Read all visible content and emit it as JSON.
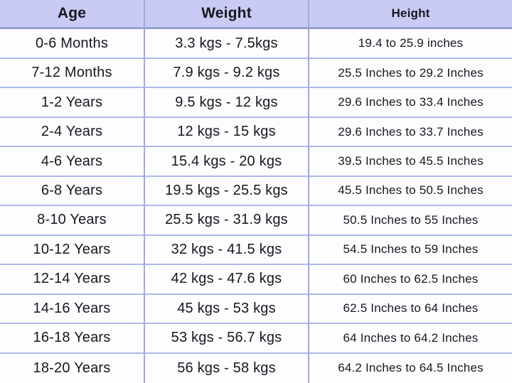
{
  "table": {
    "columns": [
      {
        "label": "Age"
      },
      {
        "label": "Weight"
      },
      {
        "label": "Height"
      }
    ],
    "rows": [
      {
        "age": "0-6 Months",
        "weight": "3.3 kgs - 7.5kgs",
        "height": "19.4 to 25.9 inches"
      },
      {
        "age": "7-12 Months",
        "weight": "7.9 kgs - 9.2 kgs",
        "height": "25.5 Inches to 29.2 Inches"
      },
      {
        "age": "1-2 Years",
        "weight": "9.5 kgs - 12 kgs",
        "height": "29.6 Inches to 33.4 Inches"
      },
      {
        "age": "2-4 Years",
        "weight": "12 kgs - 15 kgs",
        "height": "29.6 Inches to 33.7 Inches"
      },
      {
        "age": "4-6 Years",
        "weight": "15.4 kgs - 20 kgs",
        "height": "39.5 Inches to 45.5 Inches"
      },
      {
        "age": "6-8 Years",
        "weight": "19.5 kgs - 25.5 kgs",
        "height": "45.5 Inches to 50.5 Inches"
      },
      {
        "age": "8-10 Years",
        "weight": "25.5 kgs - 31.9 kgs",
        "height": "50.5 Inches to 55 Inches"
      },
      {
        "age": "10-12 Years",
        "weight": "32 kgs - 41.5 kgs",
        "height": "54.5 Inches to 59 Inches"
      },
      {
        "age": "12-14 Years",
        "weight": "42 kgs - 47.6 kgs",
        "height": "60 Inches to 62.5 Inches"
      },
      {
        "age": "14-16 Years",
        "weight": "45 kgs - 53 kgs",
        "height": "62.5 Inches to 64 Inches"
      },
      {
        "age": "16-18 Years",
        "weight": "53 kgs - 56.7 kgs",
        "height": "64 Inches to 64.2 Inches"
      },
      {
        "age": "18-20 Years",
        "weight": "56 kgs - 58 kgs",
        "height": "64.2 Inches to 64.5 Inches"
      }
    ]
  },
  "colors": {
    "header_bg": "#c9cbf4",
    "row_bg": "#fdfdff",
    "vertical_border": "#9ca9e0",
    "horizontal_border": "#aeb8ec",
    "text": "#17171f"
  },
  "chart_data": {
    "type": "table",
    "title": "Age / Weight / Height growth chart",
    "columns": [
      "Age",
      "Weight",
      "Height"
    ],
    "rows": [
      [
        "0-6 Months",
        "3.3 kgs - 7.5kgs",
        "19.4 to 25.9 inches"
      ],
      [
        "7-12 Months",
        "7.9 kgs - 9.2 kgs",
        "25.5 Inches to 29.2 Inches"
      ],
      [
        "1-2 Years",
        "9.5 kgs - 12 kgs",
        "29.6 Inches to 33.4 Inches"
      ],
      [
        "2-4 Years",
        "12 kgs - 15 kgs",
        "29.6 Inches to 33.7 Inches"
      ],
      [
        "4-6 Years",
        "15.4 kgs - 20 kgs",
        "39.5 Inches to 45.5 Inches"
      ],
      [
        "6-8 Years",
        "19.5 kgs - 25.5 kgs",
        "45.5 Inches to 50.5 Inches"
      ],
      [
        "8-10 Years",
        "25.5 kgs - 31.9 kgs",
        "50.5 Inches to 55 Inches"
      ],
      [
        "10-12 Years",
        "32 kgs - 41.5 kgs",
        "54.5 Inches to 59 Inches"
      ],
      [
        "12-14 Years",
        "42 kgs - 47.6 kgs",
        "60 Inches to 62.5 Inches"
      ],
      [
        "14-16 Years",
        "45 kgs - 53 kgs",
        "62.5 Inches to 64 Inches"
      ],
      [
        "16-18 Years",
        "53 kgs - 56.7 kgs",
        "64 Inches to 64.2 Inches"
      ],
      [
        "18-20 Years",
        "56 kgs - 58 kgs",
        "64.2 Inches to 64.5 Inches"
      ]
    ]
  }
}
